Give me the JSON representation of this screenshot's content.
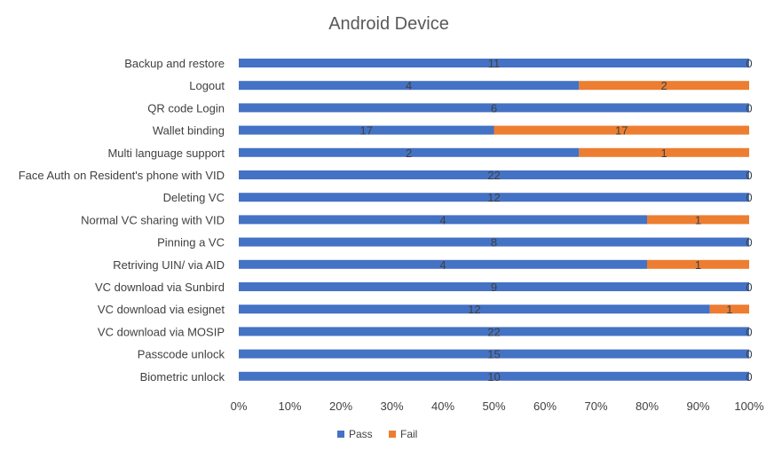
{
  "chart_data": {
    "type": "bar",
    "orientation": "horizontal",
    "stacked": "percent",
    "title": "Android Device",
    "categories": [
      "Backup and restore",
      "Logout",
      "QR code Login",
      "Wallet binding",
      "Multi language support",
      "Face Auth on Resident's phone with VID",
      "Deleting VC",
      "Normal VC sharing with VID",
      "Pinning a VC",
      "Retriving UIN/ via AID",
      "VC download via Sunbird",
      "VC download via esignet",
      "VC download via MOSIP",
      "Passcode unlock",
      "Biometric unlock"
    ],
    "series": [
      {
        "name": "Pass",
        "color": "#4472C4",
        "values": [
          11,
          4,
          6,
          17,
          2,
          22,
          12,
          4,
          8,
          4,
          9,
          12,
          22,
          15,
          10
        ]
      },
      {
        "name": "Fail",
        "color": "#ED7D31",
        "values": [
          0,
          2,
          0,
          17,
          1,
          0,
          0,
          1,
          0,
          1,
          0,
          1,
          0,
          0,
          0
        ]
      }
    ],
    "x_ticks": [
      "0%",
      "10%",
      "20%",
      "30%",
      "40%",
      "50%",
      "60%",
      "70%",
      "80%",
      "90%",
      "100%"
    ],
    "xlim": [
      0,
      100
    ],
    "legend_position": "bottom",
    "grid": false
  }
}
